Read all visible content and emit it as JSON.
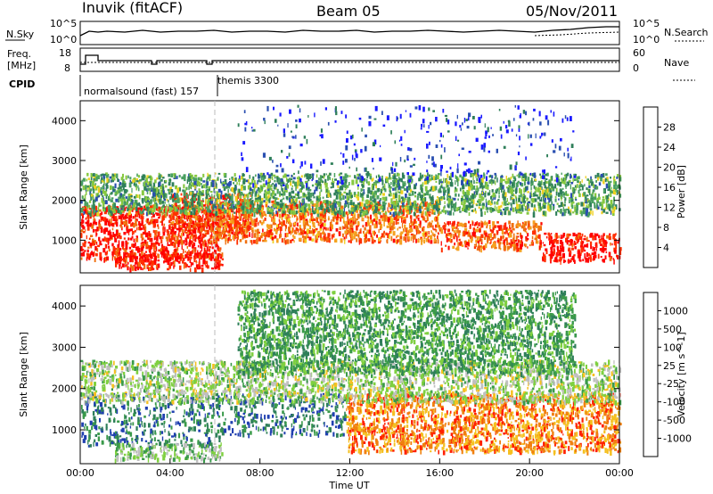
{
  "header": {
    "station": "Inuvik (fitACF)",
    "beam": "Beam 05",
    "date": "05/Nov/2011"
  },
  "summary_panels": {
    "nsky_label": "N.Sky",
    "nsky_ticks": [
      "10^5",
      "10^0"
    ],
    "nsearch_label": "N.Search",
    "nsearch_ticks": [
      "10^5",
      "10^0"
    ],
    "freq_label": "Freq.",
    "freq_unit": "[MHz]",
    "freq_ticks": [
      "18",
      "8"
    ],
    "nave_label": "Nave",
    "nave_ticks": [
      "60",
      "0"
    ],
    "cpid_label": "CPID",
    "cpid_segments": [
      "normalsound (fast) 157",
      "themis 3300"
    ]
  },
  "chart_data": [
    {
      "type": "heatmap",
      "panel": "power",
      "ylabel": "Slant Range [km]",
      "xlabel": "",
      "ylim": [
        180,
        4500
      ],
      "xlim_hours": [
        0,
        24
      ],
      "yticks": [
        "1000",
        "2000",
        "3000",
        "4000"
      ],
      "colorbar_label": "Power [dB]",
      "colorbar_ticks": [
        "4",
        "8",
        "12",
        "16",
        "20",
        "24",
        "28"
      ],
      "colorbar_colors": [
        "#1a1aff",
        "#2a4fb0",
        "#2f7f5a",
        "#4aa060",
        "#86c840",
        "#f0d020",
        "#f5a020",
        "#f07010",
        "#ff3000",
        "#ff0000"
      ],
      "bands": [
        {
          "t0": 0.0,
          "t1": 6.2,
          "r0": 550,
          "r1": 1900,
          "level": 0.9
        },
        {
          "t0": 1.5,
          "t1": 6.3,
          "r0": 300,
          "r1": 700,
          "level": 0.95
        },
        {
          "t0": 4.0,
          "t1": 7.6,
          "r0": 1100,
          "r1": 2200,
          "level": 0.85
        },
        {
          "t0": 6.0,
          "t1": 16.0,
          "r0": 1000,
          "r1": 2000,
          "level": 0.75
        },
        {
          "t0": 16.0,
          "t1": 20.5,
          "r0": 800,
          "r1": 1500,
          "level": 0.8
        },
        {
          "t0": 20.5,
          "t1": 24.0,
          "r0": 500,
          "r1": 1200,
          "level": 0.95
        },
        {
          "t0": 0.0,
          "t1": 24.0,
          "r0": 1700,
          "r1": 2700,
          "level": 0.35
        },
        {
          "t0": 7.0,
          "t1": 22.0,
          "r0": 2400,
          "r1": 4400,
          "level": 0.1
        }
      ]
    },
    {
      "type": "heatmap",
      "panel": "velocity",
      "ylabel": "Slant Range [km]",
      "xlabel": "Time UT",
      "ylim": [
        180,
        4500
      ],
      "xlim_hours": [
        0,
        24
      ],
      "xticks": [
        "00:00",
        "04:00",
        "08:00",
        "12:00",
        "16:00",
        "20:00",
        "00:00"
      ],
      "yticks": [
        "1000",
        "2000",
        "3000",
        "4000"
      ],
      "colorbar_label": "Velocity [m s^-1]",
      "colorbar_ticks": [
        "1000",
        "500",
        "100",
        "25",
        "-25",
        "-100",
        "-500",
        "-1000"
      ],
      "colorbar_colors": [
        "#2040b0",
        "#2f7f5a",
        "#3a9a4a",
        "#7fd040",
        "#c0c0c0",
        "#f5c020",
        "#f08010",
        "#ff2000"
      ],
      "bands": [
        {
          "t0": 0.0,
          "t1": 6.2,
          "r0": 600,
          "r1": 1900,
          "level": 0.2
        },
        {
          "t0": 1.5,
          "t1": 6.3,
          "r0": 300,
          "r1": 700,
          "level": 0.45
        },
        {
          "t0": 6.0,
          "t1": 11.8,
          "r0": 900,
          "r1": 1900,
          "level": 0.15
        },
        {
          "t0": 11.8,
          "t1": 24.0,
          "r0": 500,
          "r1": 1900,
          "level": 0.8
        },
        {
          "t0": 0.0,
          "t1": 24.0,
          "r0": 1700,
          "r1": 2700,
          "level": 0.5
        },
        {
          "t0": 7.0,
          "t1": 22.0,
          "r0": 2400,
          "r1": 4400,
          "level": 0.3
        }
      ]
    }
  ]
}
